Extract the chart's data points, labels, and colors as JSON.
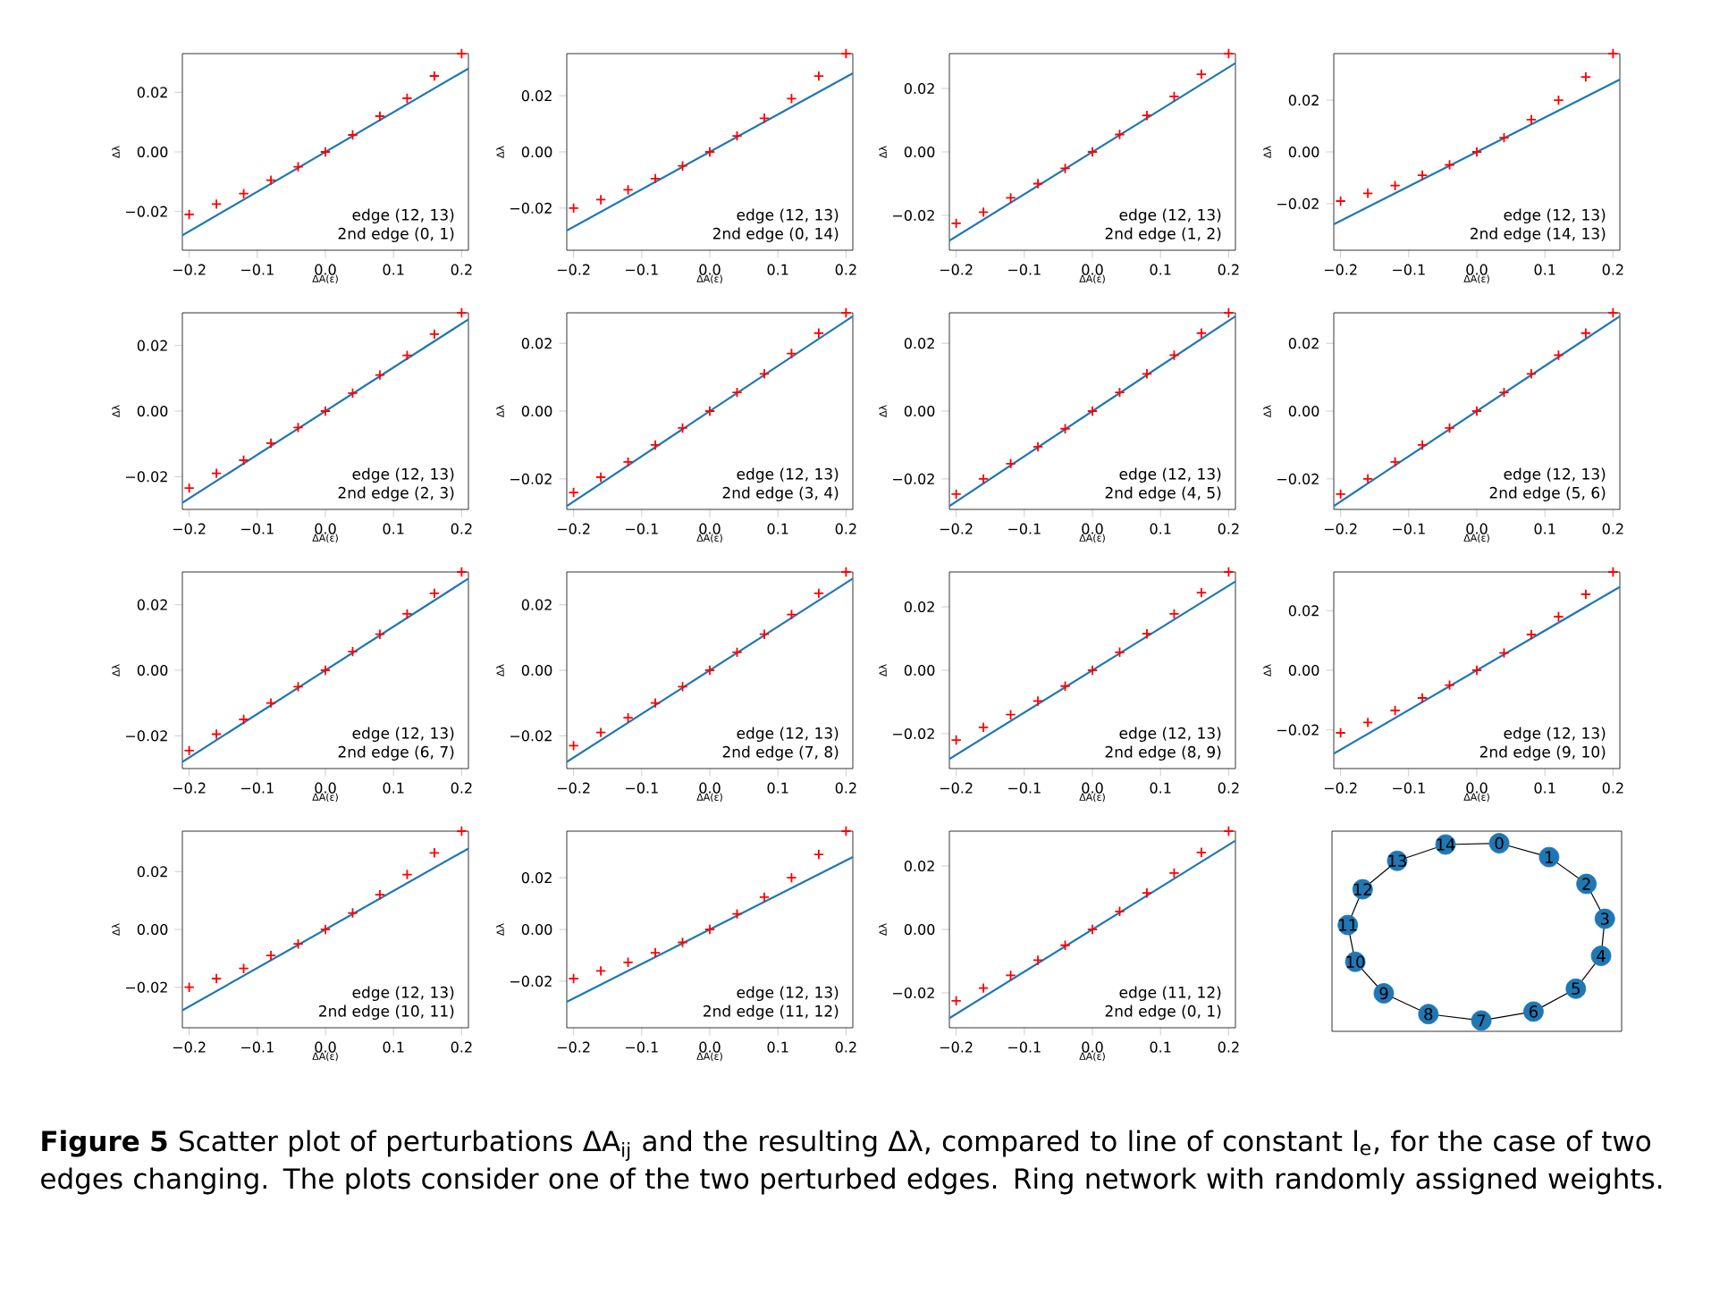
{
  "chart_data": [
    {
      "type": "scatter",
      "xlabel": "ΔA(ε)",
      "ylabel": "Δλ",
      "xlim": [
        -0.21,
        0.21
      ],
      "ylim": [
        -0.033,
        0.033
      ],
      "xticks": [
        {
          "value": -0.2,
          "label": "−0.2"
        },
        {
          "value": -0.1,
          "label": "−0.1"
        },
        {
          "value": 0,
          "label": "0.0"
        },
        {
          "value": 0.1,
          "label": "0.1"
        },
        {
          "value": 0.2,
          "label": "0.2"
        }
      ],
      "yticks": [
        {
          "value": -0.02,
          "label": "−0.02"
        },
        {
          "value": 0,
          "label": "0.00"
        },
        {
          "value": 0.02,
          "label": "0.02"
        }
      ],
      "annotations": [
        "edge (12, 13)",
        "2nd edge (0, 1)"
      ],
      "series": [
        {
          "type": "scatter",
          "marker": "cross",
          "color": "#ff0000",
          "x": [
            -0.2,
            -0.16,
            -0.12,
            -0.08,
            -0.04,
            0,
            0.04,
            0.08,
            0.12,
            0.16,
            0.2
          ],
          "values": [
            -0.021,
            -0.0175,
            -0.014,
            -0.0095,
            -0.005,
            0,
            0.0057,
            0.012,
            0.018,
            0.0255,
            0.033
          ]
        },
        {
          "type": "line",
          "color": "#1f77b4",
          "x": [
            -0.21,
            0.21
          ],
          "values": [
            -0.028,
            0.028
          ]
        }
      ]
    },
    {
      "type": "scatter",
      "xlabel": "ΔA(ε)",
      "ylabel": "Δλ",
      "xlim": [
        -0.21,
        0.21
      ],
      "ylim": [
        -0.035,
        0.035
      ],
      "xticks": [
        {
          "value": -0.2,
          "label": "−0.2"
        },
        {
          "value": -0.1,
          "label": "−0.1"
        },
        {
          "value": 0,
          "label": "0.0"
        },
        {
          "value": 0.1,
          "label": "0.1"
        },
        {
          "value": 0.2,
          "label": "0.2"
        }
      ],
      "yticks": [
        {
          "value": -0.02,
          "label": "−0.02"
        },
        {
          "value": 0,
          "label": "0.00"
        },
        {
          "value": 0.02,
          "label": "0.02"
        }
      ],
      "annotations": [
        "edge (12, 13)",
        "2nd edge (0, 14)"
      ],
      "series": [
        {
          "type": "scatter",
          "marker": "cross",
          "color": "#ff0000",
          "x": [
            -0.2,
            -0.16,
            -0.12,
            -0.08,
            -0.04,
            0,
            0.04,
            0.08,
            0.12,
            0.16,
            0.2
          ],
          "values": [
            -0.02,
            -0.017,
            -0.0135,
            -0.0095,
            -0.005,
            0,
            0.0057,
            0.012,
            0.019,
            0.027,
            0.035
          ]
        },
        {
          "type": "line",
          "color": "#1f77b4",
          "x": [
            -0.21,
            0.21
          ],
          "values": [
            -0.028,
            0.028
          ]
        }
      ]
    },
    {
      "type": "scatter",
      "xlabel": "ΔA(ε)",
      "ylabel": "Δλ",
      "xlim": [
        -0.21,
        0.21
      ],
      "ylim": [
        -0.031,
        0.031
      ],
      "xticks": [
        {
          "value": -0.2,
          "label": "−0.2"
        },
        {
          "value": -0.1,
          "label": "−0.1"
        },
        {
          "value": 0,
          "label": "0.0"
        },
        {
          "value": 0.1,
          "label": "0.1"
        },
        {
          "value": 0.2,
          "label": "0.2"
        }
      ],
      "yticks": [
        {
          "value": -0.02,
          "label": "−0.02"
        },
        {
          "value": 0,
          "label": "0.00"
        },
        {
          "value": 0.02,
          "label": "0.02"
        }
      ],
      "annotations": [
        "edge (12, 13)",
        "2nd edge (1, 2)"
      ],
      "series": [
        {
          "type": "scatter",
          "marker": "cross",
          "color": "#ff0000",
          "x": [
            -0.2,
            -0.16,
            -0.12,
            -0.08,
            -0.04,
            0,
            0.04,
            0.08,
            0.12,
            0.16,
            0.2
          ],
          "values": [
            -0.0225,
            -0.019,
            -0.0145,
            -0.01,
            -0.0052,
            0,
            0.0055,
            0.0115,
            0.0175,
            0.0245,
            0.031
          ]
        },
        {
          "type": "line",
          "color": "#1f77b4",
          "x": [
            -0.21,
            0.21
          ],
          "values": [
            -0.028,
            0.028
          ]
        }
      ]
    },
    {
      "type": "scatter",
      "xlabel": "ΔA(ε)",
      "ylabel": "Δλ",
      "xlim": [
        -0.21,
        0.21
      ],
      "ylim": [
        -0.038,
        0.038
      ],
      "xticks": [
        {
          "value": -0.2,
          "label": "−0.2"
        },
        {
          "value": -0.1,
          "label": "−0.1"
        },
        {
          "value": 0,
          "label": "0.0"
        },
        {
          "value": 0.1,
          "label": "0.1"
        },
        {
          "value": 0.2,
          "label": "0.2"
        }
      ],
      "yticks": [
        {
          "value": -0.02,
          "label": "−0.02"
        },
        {
          "value": 0,
          "label": "0.00"
        },
        {
          "value": 0.02,
          "label": "0.02"
        }
      ],
      "annotations": [
        "edge (12, 13)",
        "2nd edge (14, 13)"
      ],
      "series": [
        {
          "type": "scatter",
          "marker": "cross",
          "color": "#ff0000",
          "x": [
            -0.2,
            -0.16,
            -0.12,
            -0.08,
            -0.04,
            0,
            0.04,
            0.08,
            0.12,
            0.16,
            0.2
          ],
          "values": [
            -0.019,
            -0.016,
            -0.013,
            -0.009,
            -0.005,
            0,
            0.0055,
            0.0125,
            0.02,
            0.029,
            0.038
          ]
        },
        {
          "type": "line",
          "color": "#1f77b4",
          "x": [
            -0.21,
            0.21
          ],
          "values": [
            -0.028,
            0.028
          ]
        }
      ]
    },
    {
      "type": "scatter",
      "xlabel": "ΔA(ε)",
      "ylabel": "Δλ",
      "xlim": [
        -0.21,
        0.21
      ],
      "ylim": [
        -0.03,
        0.03
      ],
      "xticks": [
        {
          "value": -0.2,
          "label": "−0.2"
        },
        {
          "value": -0.1,
          "label": "−0.1"
        },
        {
          "value": 0,
          "label": "0.0"
        },
        {
          "value": 0.1,
          "label": "0.1"
        },
        {
          "value": 0.2,
          "label": "0.2"
        }
      ],
      "yticks": [
        {
          "value": -0.02,
          "label": "−0.02"
        },
        {
          "value": 0,
          "label": "0.00"
        },
        {
          "value": 0.02,
          "label": "0.02"
        }
      ],
      "annotations": [
        "edge (12, 13)",
        "2nd edge (2, 3)"
      ],
      "series": [
        {
          "type": "scatter",
          "marker": "cross",
          "color": "#ff0000",
          "x": [
            -0.2,
            -0.16,
            -0.12,
            -0.08,
            -0.04,
            0,
            0.04,
            0.08,
            0.12,
            0.16,
            0.2
          ],
          "values": [
            -0.0235,
            -0.019,
            -0.015,
            -0.0098,
            -0.005,
            0,
            0.0055,
            0.011,
            0.017,
            0.0235,
            0.03
          ]
        },
        {
          "type": "line",
          "color": "#1f77b4",
          "x": [
            -0.21,
            0.21
          ],
          "values": [
            -0.028,
            0.028
          ]
        }
      ]
    },
    {
      "type": "scatter",
      "xlabel": "ΔA(ε)",
      "ylabel": "Δλ",
      "xlim": [
        -0.21,
        0.21
      ],
      "ylim": [
        -0.029,
        0.029
      ],
      "xticks": [
        {
          "value": -0.2,
          "label": "−0.2"
        },
        {
          "value": -0.1,
          "label": "−0.1"
        },
        {
          "value": 0,
          "label": "0.0"
        },
        {
          "value": 0.1,
          "label": "0.1"
        },
        {
          "value": 0.2,
          "label": "0.2"
        }
      ],
      "yticks": [
        {
          "value": -0.02,
          "label": "−0.02"
        },
        {
          "value": 0,
          "label": "0.00"
        },
        {
          "value": 0.02,
          "label": "0.02"
        }
      ],
      "annotations": [
        "edge (12, 13)",
        "2nd edge (3, 4)"
      ],
      "series": [
        {
          "type": "scatter",
          "marker": "cross",
          "color": "#ff0000",
          "x": [
            -0.2,
            -0.16,
            -0.12,
            -0.08,
            -0.04,
            0,
            0.04,
            0.08,
            0.12,
            0.16,
            0.2
          ],
          "values": [
            -0.024,
            -0.0195,
            -0.015,
            -0.01,
            -0.005,
            0,
            0.0055,
            0.011,
            0.017,
            0.023,
            0.029
          ]
        },
        {
          "type": "line",
          "color": "#1f77b4",
          "x": [
            -0.21,
            0.21
          ],
          "values": [
            -0.028,
            0.028
          ]
        }
      ]
    },
    {
      "type": "scatter",
      "xlabel": "ΔA(ε)",
      "ylabel": "Δλ",
      "xlim": [
        -0.21,
        0.21
      ],
      "ylim": [
        -0.029,
        0.029
      ],
      "xticks": [
        {
          "value": -0.2,
          "label": "−0.2"
        },
        {
          "value": -0.1,
          "label": "−0.1"
        },
        {
          "value": 0,
          "label": "0.0"
        },
        {
          "value": 0.1,
          "label": "0.1"
        },
        {
          "value": 0.2,
          "label": "0.2"
        }
      ],
      "yticks": [
        {
          "value": -0.02,
          "label": "−0.02"
        },
        {
          "value": 0,
          "label": "0.00"
        },
        {
          "value": 0.02,
          "label": "0.02"
        }
      ],
      "annotations": [
        "edge (12, 13)",
        "2nd edge (4, 5)"
      ],
      "series": [
        {
          "type": "scatter",
          "marker": "cross",
          "color": "#ff0000",
          "x": [
            -0.2,
            -0.16,
            -0.12,
            -0.08,
            -0.04,
            0,
            0.04,
            0.08,
            0.12,
            0.16,
            0.2
          ],
          "values": [
            -0.0245,
            -0.02,
            -0.0155,
            -0.0105,
            -0.0052,
            0,
            0.0055,
            0.011,
            0.0165,
            0.023,
            0.029
          ]
        },
        {
          "type": "line",
          "color": "#1f77b4",
          "x": [
            -0.21,
            0.21
          ],
          "values": [
            -0.028,
            0.028
          ]
        }
      ]
    },
    {
      "type": "scatter",
      "xlabel": "ΔA(ε)",
      "ylabel": "Δλ",
      "xlim": [
        -0.21,
        0.21
      ],
      "ylim": [
        -0.029,
        0.029
      ],
      "xticks": [
        {
          "value": -0.2,
          "label": "−0.2"
        },
        {
          "value": -0.1,
          "label": "−0.1"
        },
        {
          "value": 0,
          "label": "0.0"
        },
        {
          "value": 0.1,
          "label": "0.1"
        },
        {
          "value": 0.2,
          "label": "0.2"
        }
      ],
      "yticks": [
        {
          "value": -0.02,
          "label": "−0.02"
        },
        {
          "value": 0,
          "label": "0.00"
        },
        {
          "value": 0.02,
          "label": "0.02"
        }
      ],
      "annotations": [
        "edge (12, 13)",
        "2nd edge (5, 6)"
      ],
      "series": [
        {
          "type": "scatter",
          "marker": "cross",
          "color": "#ff0000",
          "x": [
            -0.2,
            -0.16,
            -0.12,
            -0.08,
            -0.04,
            0,
            0.04,
            0.08,
            0.12,
            0.16,
            0.2
          ],
          "values": [
            -0.0245,
            -0.02,
            -0.015,
            -0.01,
            -0.005,
            0,
            0.0055,
            0.011,
            0.0165,
            0.023,
            0.029
          ]
        },
        {
          "type": "line",
          "color": "#1f77b4",
          "x": [
            -0.21,
            0.21
          ],
          "values": [
            -0.028,
            0.028
          ]
        }
      ]
    },
    {
      "type": "scatter",
      "xlabel": "ΔA(ε)",
      "ylabel": "Δλ",
      "xlim": [
        -0.21,
        0.21
      ],
      "ylim": [
        -0.03,
        0.03
      ],
      "xticks": [
        {
          "value": -0.2,
          "label": "−0.2"
        },
        {
          "value": -0.1,
          "label": "−0.1"
        },
        {
          "value": 0,
          "label": "0.0"
        },
        {
          "value": 0.1,
          "label": "0.1"
        },
        {
          "value": 0.2,
          "label": "0.2"
        }
      ],
      "yticks": [
        {
          "value": -0.02,
          "label": "−0.02"
        },
        {
          "value": 0,
          "label": "0.00"
        },
        {
          "value": 0.02,
          "label": "0.02"
        }
      ],
      "annotations": [
        "edge (12, 13)",
        "2nd edge (6, 7)"
      ],
      "series": [
        {
          "type": "scatter",
          "marker": "cross",
          "color": "#ff0000",
          "x": [
            -0.2,
            -0.16,
            -0.12,
            -0.08,
            -0.04,
            0,
            0.04,
            0.08,
            0.12,
            0.16,
            0.2
          ],
          "values": [
            -0.0245,
            -0.0195,
            -0.015,
            -0.01,
            -0.005,
            0,
            0.0057,
            0.011,
            0.0172,
            0.0235,
            0.03
          ]
        },
        {
          "type": "line",
          "color": "#1f77b4",
          "x": [
            -0.21,
            0.21
          ],
          "values": [
            -0.028,
            0.028
          ]
        }
      ]
    },
    {
      "type": "scatter",
      "xlabel": "ΔA(ε)",
      "ylabel": "Δλ",
      "xlim": [
        -0.21,
        0.21
      ],
      "ylim": [
        -0.03,
        0.03
      ],
      "xticks": [
        {
          "value": -0.2,
          "label": "−0.2"
        },
        {
          "value": -0.1,
          "label": "−0.1"
        },
        {
          "value": 0,
          "label": "0.0"
        },
        {
          "value": 0.1,
          "label": "0.1"
        },
        {
          "value": 0.2,
          "label": "0.2"
        }
      ],
      "yticks": [
        {
          "value": -0.02,
          "label": "−0.02"
        },
        {
          "value": 0,
          "label": "0.00"
        },
        {
          "value": 0.02,
          "label": "0.02"
        }
      ],
      "annotations": [
        "edge (12, 13)",
        "2nd edge (7, 8)"
      ],
      "series": [
        {
          "type": "scatter",
          "marker": "cross",
          "color": "#ff0000",
          "x": [
            -0.2,
            -0.16,
            -0.12,
            -0.08,
            -0.04,
            0,
            0.04,
            0.08,
            0.12,
            0.16,
            0.2
          ],
          "values": [
            -0.023,
            -0.019,
            -0.0145,
            -0.01,
            -0.005,
            0,
            0.0055,
            0.011,
            0.017,
            0.0235,
            0.03
          ]
        },
        {
          "type": "line",
          "color": "#1f77b4",
          "x": [
            -0.21,
            0.21
          ],
          "values": [
            -0.028,
            0.028
          ]
        }
      ]
    },
    {
      "type": "scatter",
      "xlabel": "ΔA(ε)",
      "ylabel": "Δλ",
      "xlim": [
        -0.21,
        0.21
      ],
      "ylim": [
        -0.031,
        0.031
      ],
      "xticks": [
        {
          "value": -0.2,
          "label": "−0.2"
        },
        {
          "value": -0.1,
          "label": "−0.1"
        },
        {
          "value": 0,
          "label": "0.0"
        },
        {
          "value": 0.1,
          "label": "0.1"
        },
        {
          "value": 0.2,
          "label": "0.2"
        }
      ],
      "yticks": [
        {
          "value": -0.02,
          "label": "−0.02"
        },
        {
          "value": 0,
          "label": "0.00"
        },
        {
          "value": 0.02,
          "label": "0.02"
        }
      ],
      "annotations": [
        "edge (12, 13)",
        "2nd edge (8, 9)"
      ],
      "series": [
        {
          "type": "scatter",
          "marker": "cross",
          "color": "#ff0000",
          "x": [
            -0.2,
            -0.16,
            -0.12,
            -0.08,
            -0.04,
            0,
            0.04,
            0.08,
            0.12,
            0.16,
            0.2
          ],
          "values": [
            -0.022,
            -0.018,
            -0.014,
            -0.0097,
            -0.005,
            0,
            0.0057,
            0.0115,
            0.0178,
            0.0245,
            0.031
          ]
        },
        {
          "type": "line",
          "color": "#1f77b4",
          "x": [
            -0.21,
            0.21
          ],
          "values": [
            -0.028,
            0.028
          ]
        }
      ]
    },
    {
      "type": "scatter",
      "xlabel": "ΔA(ε)",
      "ylabel": "Δλ",
      "xlim": [
        -0.21,
        0.21
      ],
      "ylim": [
        -0.033,
        0.033
      ],
      "xticks": [
        {
          "value": -0.2,
          "label": "−0.2"
        },
        {
          "value": -0.1,
          "label": "−0.1"
        },
        {
          "value": 0,
          "label": "0.0"
        },
        {
          "value": 0.1,
          "label": "0.1"
        },
        {
          "value": 0.2,
          "label": "0.2"
        }
      ],
      "yticks": [
        {
          "value": -0.02,
          "label": "−0.02"
        },
        {
          "value": 0,
          "label": "0.00"
        },
        {
          "value": 0.02,
          "label": "0.02"
        }
      ],
      "annotations": [
        "edge (12, 13)",
        "2nd edge (9, 10)"
      ],
      "series": [
        {
          "type": "scatter",
          "marker": "cross",
          "color": "#ff0000",
          "x": [
            -0.2,
            -0.16,
            -0.12,
            -0.08,
            -0.04,
            0,
            0.04,
            0.08,
            0.12,
            0.16,
            0.2
          ],
          "values": [
            -0.021,
            -0.0175,
            -0.0135,
            -0.0093,
            -0.005,
            0,
            0.0058,
            0.012,
            0.018,
            0.0255,
            0.033
          ]
        },
        {
          "type": "line",
          "color": "#1f77b4",
          "x": [
            -0.21,
            0.21
          ],
          "values": [
            -0.028,
            0.028
          ]
        }
      ]
    },
    {
      "type": "scatter",
      "xlabel": "ΔA(ε)",
      "ylabel": "Δλ",
      "xlim": [
        -0.21,
        0.21
      ],
      "ylim": [
        -0.034,
        0.034
      ],
      "xticks": [
        {
          "value": -0.2,
          "label": "−0.2"
        },
        {
          "value": -0.1,
          "label": "−0.1"
        },
        {
          "value": 0,
          "label": "0.0"
        },
        {
          "value": 0.1,
          "label": "0.1"
        },
        {
          "value": 0.2,
          "label": "0.2"
        }
      ],
      "yticks": [
        {
          "value": -0.02,
          "label": "−0.02"
        },
        {
          "value": 0,
          "label": "0.00"
        },
        {
          "value": 0.02,
          "label": "0.02"
        }
      ],
      "annotations": [
        "edge (12, 13)",
        "2nd edge (10, 11)"
      ],
      "series": [
        {
          "type": "scatter",
          "marker": "cross",
          "color": "#ff0000",
          "x": [
            -0.2,
            -0.16,
            -0.12,
            -0.08,
            -0.04,
            0,
            0.04,
            0.08,
            0.12,
            0.16,
            0.2
          ],
          "values": [
            -0.02,
            -0.017,
            -0.0135,
            -0.009,
            -0.005,
            0,
            0.0057,
            0.012,
            0.019,
            0.0265,
            0.034
          ]
        },
        {
          "type": "line",
          "color": "#1f77b4",
          "x": [
            -0.21,
            0.21
          ],
          "values": [
            -0.028,
            0.028
          ]
        }
      ]
    },
    {
      "type": "scatter",
      "xlabel": "ΔA(ε)",
      "ylabel": "Δλ",
      "xlim": [
        -0.21,
        0.21
      ],
      "ylim": [
        -0.038,
        0.038
      ],
      "xticks": [
        {
          "value": -0.2,
          "label": "−0.2"
        },
        {
          "value": -0.1,
          "label": "−0.1"
        },
        {
          "value": 0,
          "label": "0.0"
        },
        {
          "value": 0.1,
          "label": "0.1"
        },
        {
          "value": 0.2,
          "label": "0.2"
        }
      ],
      "yticks": [
        {
          "value": -0.02,
          "label": "−0.02"
        },
        {
          "value": 0,
          "label": "0.00"
        },
        {
          "value": 0.02,
          "label": "0.02"
        }
      ],
      "annotations": [
        "edge (12, 13)",
        "2nd edge (11, 12)"
      ],
      "series": [
        {
          "type": "scatter",
          "marker": "cross",
          "color": "#ff0000",
          "x": [
            -0.2,
            -0.16,
            -0.12,
            -0.08,
            -0.04,
            0,
            0.04,
            0.08,
            0.12,
            0.16,
            0.2
          ],
          "values": [
            -0.019,
            -0.016,
            -0.0127,
            -0.009,
            -0.005,
            0,
            0.006,
            0.0125,
            0.02,
            0.029,
            0.038
          ]
        },
        {
          "type": "line",
          "color": "#1f77b4",
          "x": [
            -0.21,
            0.21
          ],
          "values": [
            -0.028,
            0.028
          ]
        }
      ]
    },
    {
      "type": "scatter",
      "xlabel": "ΔA(ε)",
      "ylabel": "Δλ",
      "xlim": [
        -0.21,
        0.21
      ],
      "ylim": [
        -0.031,
        0.031
      ],
      "xticks": [
        {
          "value": -0.2,
          "label": "−0.2"
        },
        {
          "value": -0.1,
          "label": "−0.1"
        },
        {
          "value": 0,
          "label": "0.0"
        },
        {
          "value": 0.1,
          "label": "0.1"
        },
        {
          "value": 0.2,
          "label": "0.2"
        }
      ],
      "yticks": [
        {
          "value": -0.02,
          "label": "−0.02"
        },
        {
          "value": 0,
          "label": "0.00"
        },
        {
          "value": 0.02,
          "label": "0.02"
        }
      ],
      "annotations": [
        "edge (11, 12)",
        "2nd edge (0, 1)"
      ],
      "series": [
        {
          "type": "scatter",
          "marker": "cross",
          "color": "#ff0000",
          "x": [
            -0.2,
            -0.16,
            -0.12,
            -0.08,
            -0.04,
            0,
            0.04,
            0.08,
            0.12,
            0.16,
            0.2
          ],
          "values": [
            -0.0225,
            -0.0185,
            -0.0145,
            -0.0097,
            -0.005,
            0,
            0.0057,
            0.0115,
            0.0178,
            0.0243,
            0.031
          ]
        },
        {
          "type": "line",
          "color": "#1f77b4",
          "x": [
            -0.21,
            0.21
          ],
          "values": [
            -0.028,
            0.028
          ]
        }
      ]
    },
    {
      "type": "other",
      "color": "#1f77b4",
      "categories": [
        "0",
        "1",
        "2",
        "3",
        "4",
        "5",
        "6",
        "7",
        "8",
        "9",
        "10",
        "11",
        "12",
        "13",
        "14"
      ]
    },
    {
      "type": "other",
      "annotations": [
        "**Figure 5** Scatter plot of perturbations ΔA$_{ij}$ and the resulting Δλ, compared to line of constant l$_{e}$, for the case of two edges changing. The plots consider one of the two perturbed edges. Ring network with randomly assigned weights."
      ]
    }
  ]
}
